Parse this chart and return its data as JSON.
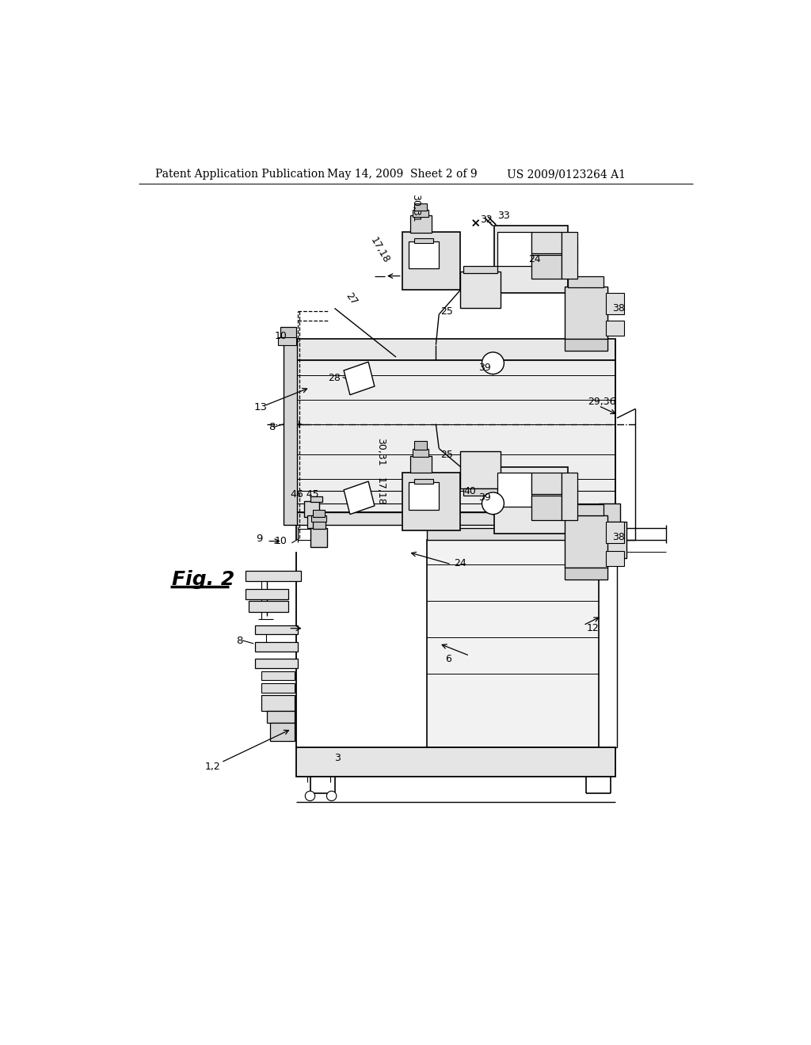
{
  "background_color": "#ffffff",
  "header_left": "Patent Application Publication",
  "header_mid": "May 14, 2009  Sheet 2 of 9",
  "header_right": "US 2009/0123264 A1"
}
